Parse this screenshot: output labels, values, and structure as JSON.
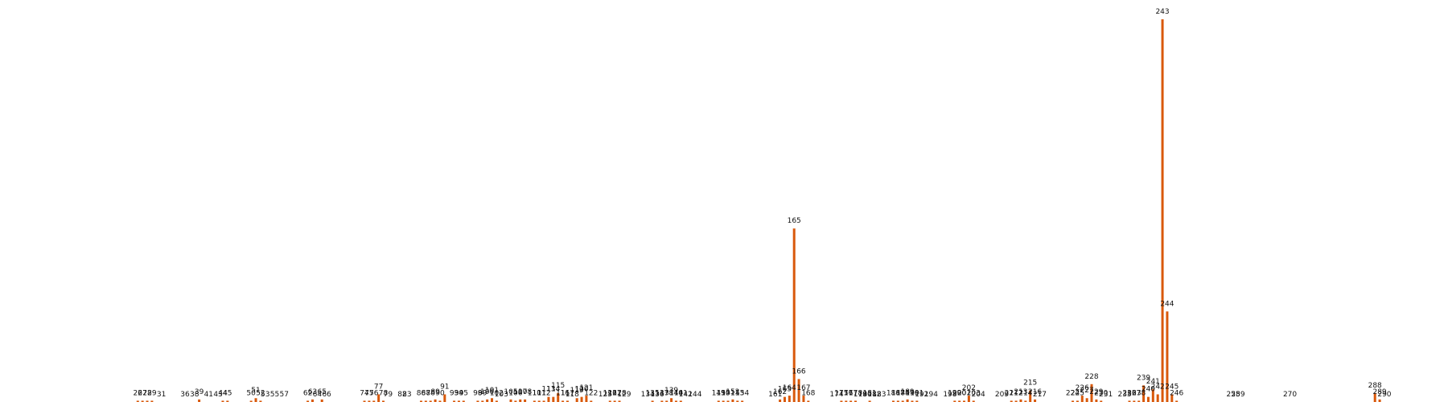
{
  "colors": {
    "bar": "#d9590b",
    "background": "#ffffff",
    "label": "#111111"
  },
  "chart_data": {
    "type": "bar",
    "title": "",
    "xlabel": "",
    "ylabel": "",
    "axes_visible": false,
    "grid": false,
    "legend": "none",
    "data_labels": "category index above each bar",
    "ylim": [
      0,
      300
    ],
    "xlim": [
      15,
      300
    ],
    "bars": [
      {
        "label": "26",
        "x": 26,
        "value": 1
      },
      {
        "label": "27",
        "x": 27,
        "value": 1
      },
      {
        "label": "28",
        "x": 28,
        "value": 1
      },
      {
        "label": "29",
        "x": 29,
        "value": 1
      },
      {
        "label": "31",
        "x": 31,
        "value": 0
      },
      {
        "label": "36",
        "x": 36,
        "value": 0
      },
      {
        "label": "38",
        "x": 38,
        "value": 0
      },
      {
        "label": "39",
        "x": 39,
        "value": 2
      },
      {
        "label": "41",
        "x": 41,
        "value": 0
      },
      {
        "label": "43",
        "x": 43,
        "value": 0
      },
      {
        "label": "44",
        "x": 44,
        "value": 1
      },
      {
        "label": "45",
        "x": 45,
        "value": 1
      },
      {
        "label": "50",
        "x": 50,
        "value": 1
      },
      {
        "label": "51",
        "x": 51,
        "value": 3
      },
      {
        "label": "52",
        "x": 52,
        "value": 1
      },
      {
        "label": "53",
        "x": 53,
        "value": 0
      },
      {
        "label": "55",
        "x": 55,
        "value": 0
      },
      {
        "label": "57",
        "x": 57,
        "value": 0
      },
      {
        "label": "62",
        "x": 62,
        "value": 1
      },
      {
        "label": "63",
        "x": 63,
        "value": 2
      },
      {
        "label": "64",
        "x": 64,
        "value": 0
      },
      {
        "label": "65",
        "x": 65,
        "value": 2
      },
      {
        "label": "66",
        "x": 66,
        "value": 0
      },
      {
        "label": "74",
        "x": 74,
        "value": 1
      },
      {
        "label": "75",
        "x": 75,
        "value": 1
      },
      {
        "label": "76",
        "x": 76,
        "value": 1
      },
      {
        "label": "77",
        "x": 77,
        "value": 6
      },
      {
        "label": "78",
        "x": 78,
        "value": 1
      },
      {
        "label": "79",
        "x": 79,
        "value": 0
      },
      {
        "label": "82",
        "x": 82,
        "value": 0
      },
      {
        "label": "83",
        "x": 83,
        "value": 0
      },
      {
        "label": "86",
        "x": 86,
        "value": 1
      },
      {
        "label": "87",
        "x": 87,
        "value": 1
      },
      {
        "label": "88",
        "x": 88,
        "value": 1
      },
      {
        "label": "89",
        "x": 89,
        "value": 2
      },
      {
        "label": "90",
        "x": 90,
        "value": 1
      },
      {
        "label": "91",
        "x": 91,
        "value": 6
      },
      {
        "label": "93",
        "x": 93,
        "value": 1
      },
      {
        "label": "94",
        "x": 94,
        "value": 1
      },
      {
        "label": "95",
        "x": 95,
        "value": 1
      },
      {
        "label": "98",
        "x": 98,
        "value": 1
      },
      {
        "label": "99",
        "x": 99,
        "value": 1
      },
      {
        "label": "100",
        "x": 100,
        "value": 2
      },
      {
        "label": "101",
        "x": 101,
        "value": 3
      },
      {
        "label": "102",
        "x": 102,
        "value": 1
      },
      {
        "label": "103",
        "x": 103,
        "value": 0
      },
      {
        "label": "105",
        "x": 105,
        "value": 2
      },
      {
        "label": "106",
        "x": 106,
        "value": 1
      },
      {
        "label": "107",
        "x": 107,
        "value": 2
      },
      {
        "label": "108",
        "x": 108,
        "value": 2
      },
      {
        "label": "110",
        "x": 110,
        "value": 1
      },
      {
        "label": "111",
        "x": 111,
        "value": 1
      },
      {
        "label": "112",
        "x": 112,
        "value": 1
      },
      {
        "label": "113",
        "x": 113,
        "value": 4
      },
      {
        "label": "114",
        "x": 114,
        "value": 4
      },
      {
        "label": "115",
        "x": 115,
        "value": 7
      },
      {
        "label": "116",
        "x": 116,
        "value": 1
      },
      {
        "label": "117",
        "x": 117,
        "value": 1
      },
      {
        "label": "118",
        "x": 118,
        "value": 0
      },
      {
        "label": "119",
        "x": 119,
        "value": 3
      },
      {
        "label": "120",
        "x": 120,
        "value": 4
      },
      {
        "label": "121",
        "x": 121,
        "value": 5
      },
      {
        "label": "122",
        "x": 122,
        "value": 1
      },
      {
        "label": "125",
        "x": 125,
        "value": 0
      },
      {
        "label": "126",
        "x": 126,
        "value": 1
      },
      {
        "label": "127",
        "x": 127,
        "value": 1
      },
      {
        "label": "128",
        "x": 128,
        "value": 1
      },
      {
        "label": "129",
        "x": 129,
        "value": 0
      },
      {
        "label": "134",
        "x": 134,
        "value": 0
      },
      {
        "label": "135",
        "x": 135,
        "value": 1
      },
      {
        "label": "136",
        "x": 136,
        "value": 0
      },
      {
        "label": "137",
        "x": 137,
        "value": 1
      },
      {
        "label": "138",
        "x": 138,
        "value": 1
      },
      {
        "label": "139",
        "x": 139,
        "value": 3
      },
      {
        "label": "140",
        "x": 140,
        "value": 1
      },
      {
        "label": "141",
        "x": 141,
        "value": 1
      },
      {
        "label": "142",
        "x": 142,
        "value": 0
      },
      {
        "label": "144",
        "x": 144,
        "value": 0
      },
      {
        "label": "149",
        "x": 149,
        "value": 1
      },
      {
        "label": "150",
        "x": 150,
        "value": 1
      },
      {
        "label": "151",
        "x": 151,
        "value": 1
      },
      {
        "label": "152",
        "x": 152,
        "value": 2
      },
      {
        "label": "153",
        "x": 153,
        "value": 1
      },
      {
        "label": "154",
        "x": 154,
        "value": 1
      },
      {
        "label": "161",
        "x": 161,
        "value": 0
      },
      {
        "label": "162",
        "x": 162,
        "value": 2
      },
      {
        "label": "163",
        "x": 163,
        "value": 4
      },
      {
        "label": "164",
        "x": 164,
        "value": 5
      },
      {
        "label": "165",
        "x": 165,
        "value": 136
      },
      {
        "label": "166",
        "x": 166,
        "value": 18
      },
      {
        "label": "167",
        "x": 167,
        "value": 5
      },
      {
        "label": "168",
        "x": 168,
        "value": 1
      },
      {
        "label": "174",
        "x": 174,
        "value": 0
      },
      {
        "label": "175",
        "x": 175,
        "value": 1
      },
      {
        "label": "176",
        "x": 176,
        "value": 1
      },
      {
        "label": "177",
        "x": 177,
        "value": 1
      },
      {
        "label": "178",
        "x": 178,
        "value": 1
      },
      {
        "label": "179",
        "x": 179,
        "value": 0
      },
      {
        "label": "180",
        "x": 180,
        "value": 0
      },
      {
        "label": "181",
        "x": 181,
        "value": 1
      },
      {
        "label": "182",
        "x": 182,
        "value": 0
      },
      {
        "label": "183",
        "x": 183,
        "value": 0
      },
      {
        "label": "186",
        "x": 186,
        "value": 1
      },
      {
        "label": "187",
        "x": 187,
        "value": 1
      },
      {
        "label": "188",
        "x": 188,
        "value": 1
      },
      {
        "label": "189",
        "x": 189,
        "value": 2
      },
      {
        "label": "190",
        "x": 190,
        "value": 1
      },
      {
        "label": "191",
        "x": 191,
        "value": 1
      },
      {
        "label": "192",
        "x": 192,
        "value": 0
      },
      {
        "label": "194",
        "x": 194,
        "value": 0
      },
      {
        "label": "198",
        "x": 198,
        "value": 0
      },
      {
        "label": "199",
        "x": 199,
        "value": 1
      },
      {
        "label": "200",
        "x": 200,
        "value": 1
      },
      {
        "label": "201",
        "x": 201,
        "value": 1
      },
      {
        "label": "202",
        "x": 202,
        "value": 5
      },
      {
        "label": "203",
        "x": 203,
        "value": 1
      },
      {
        "label": "204",
        "x": 204,
        "value": 0
      },
      {
        "label": "209",
        "x": 209,
        "value": 0
      },
      {
        "label": "211",
        "x": 211,
        "value": 1
      },
      {
        "label": "212",
        "x": 212,
        "value": 1
      },
      {
        "label": "213",
        "x": 213,
        "value": 2
      },
      {
        "label": "214",
        "x": 214,
        "value": 1
      },
      {
        "label": "215",
        "x": 215,
        "value": 9
      },
      {
        "label": "216",
        "x": 216,
        "value": 2
      },
      {
        "label": "217",
        "x": 217,
        "value": 0
      },
      {
        "label": "224",
        "x": 224,
        "value": 1
      },
      {
        "label": "225",
        "x": 225,
        "value": 1
      },
      {
        "label": "226",
        "x": 226,
        "value": 5
      },
      {
        "label": "227",
        "x": 227,
        "value": 3
      },
      {
        "label": "228",
        "x": 228,
        "value": 14
      },
      {
        "label": "229",
        "x": 229,
        "value": 2
      },
      {
        "label": "230",
        "x": 230,
        "value": 1
      },
      {
        "label": "231",
        "x": 231,
        "value": 0
      },
      {
        "label": "235",
        "x": 235,
        "value": 0
      },
      {
        "label": "236",
        "x": 236,
        "value": 1
      },
      {
        "label": "237",
        "x": 237,
        "value": 1
      },
      {
        "label": "238",
        "x": 238,
        "value": 1
      },
      {
        "label": "239",
        "x": 239,
        "value": 13
      },
      {
        "label": "240",
        "x": 240,
        "value": 4
      },
      {
        "label": "241",
        "x": 241,
        "value": 10
      },
      {
        "label": "242",
        "x": 242,
        "value": 6
      },
      {
        "label": "243",
        "x": 243,
        "value": 300
      },
      {
        "label": "244",
        "x": 244,
        "value": 71
      },
      {
        "label": "245",
        "x": 245,
        "value": 6
      },
      {
        "label": "246",
        "x": 246,
        "value": 1
      },
      {
        "label": "258",
        "x": 258,
        "value": 0
      },
      {
        "label": "259",
        "x": 259,
        "value": 0
      },
      {
        "label": "270",
        "x": 270,
        "value": 0
      },
      {
        "label": "288",
        "x": 288,
        "value": 7
      },
      {
        "label": "289",
        "x": 289,
        "value": 2
      },
      {
        "label": "290",
        "x": 290,
        "value": 0
      }
    ]
  }
}
